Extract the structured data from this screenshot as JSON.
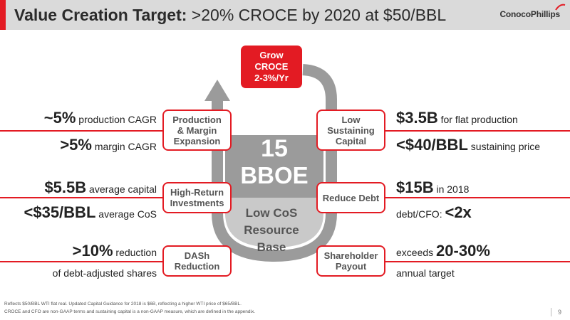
{
  "header": {
    "title_bold": "Value Creation Target:",
    "title_rest": " >20% CROCE by 2020 at $50/BBL",
    "logo": "ConocoPhillips"
  },
  "center": {
    "grow_box": [
      "Grow",
      "CROCE",
      "2-3%/Yr"
    ],
    "big_number": "15",
    "big_unit": "BBOE",
    "resource": [
      "Low CoS",
      "Resource",
      "Base"
    ]
  },
  "boxes": {
    "production": [
      "Production",
      "& Margin",
      "Expansion"
    ],
    "high_return": [
      "High-Return",
      "Investments"
    ],
    "dash": [
      "DASh",
      "Reduction"
    ],
    "low_sustaining": [
      "Low",
      "Sustaining",
      "Capital"
    ],
    "reduce_debt": [
      "Reduce Debt"
    ],
    "shareholder": [
      "Shareholder",
      "Payout"
    ]
  },
  "left_stats": {
    "r1": {
      "big": "~5%",
      "small": " production CAGR"
    },
    "r2": {
      "big": ">5%",
      "small": " margin CAGR"
    },
    "r3": {
      "big": "$5.5B",
      "small": " average capital"
    },
    "r4": {
      "big": "<$35/BBL",
      "small": " average CoS"
    },
    "r5": {
      "big": ">10%",
      "small": " reduction"
    },
    "r6": {
      "big": "",
      "small": "of debt-adjusted shares"
    }
  },
  "right_stats": {
    "r1": {
      "big": "$3.5B",
      "small": " for flat production"
    },
    "r2": {
      "big": "<$40/BBL",
      "small": " sustaining price"
    },
    "r3": {
      "big": "$15B",
      "small": " in 2018"
    },
    "r4": {
      "small": "debt/CFO: ",
      "big": "<2x"
    },
    "r5": {
      "small": "exceeds ",
      "big": "20-30%"
    },
    "r6": {
      "big": "",
      "small": "annual target"
    }
  },
  "footnotes": [
    "Reflects $50/BBL WTI flat real. Updated Capital Guidance for 2018 is $6B, reflecting a higher WTI price of $65/BBL.",
    "CROCE and CFO are non-GAAP terms and sustaining capital is a non-GAAP measure, which are defined in the appendix."
  ],
  "page_number": "9",
  "colors": {
    "accent": "#e31b23",
    "header_bg": "#dadada",
    "cycle": "#9b9b9b",
    "center_fill": "#c9c9c9"
  }
}
